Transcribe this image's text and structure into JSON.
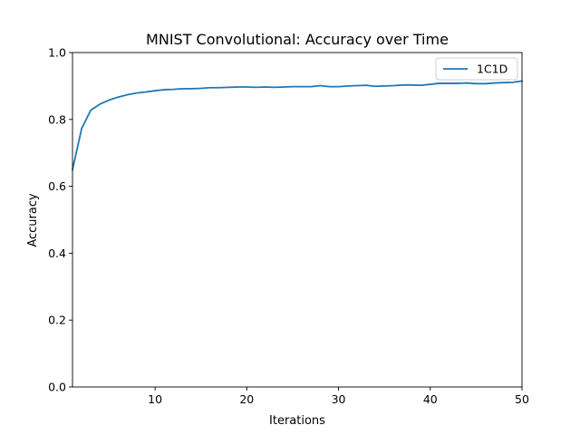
{
  "chart_data": {
    "type": "line",
    "title": "MNIST Convolutional: Accuracy over Time",
    "xlabel": "Iterations",
    "ylabel": "Accuracy",
    "xlim": [
      1,
      50
    ],
    "ylim": [
      0.0,
      1.0
    ],
    "x_ticks": [
      10,
      20,
      30,
      40,
      50
    ],
    "x_tick_labels": [
      "10",
      "20",
      "30",
      "40",
      "50"
    ],
    "y_ticks": [
      0.0,
      0.2,
      0.4,
      0.6,
      0.8,
      1.0
    ],
    "y_tick_labels": [
      "0.0",
      "0.2",
      "0.4",
      "0.6",
      "0.8",
      "1.0"
    ],
    "grid": false,
    "legend_position": "top-right",
    "x": [
      1,
      2,
      3,
      4,
      5,
      6,
      7,
      8,
      9,
      10,
      11,
      12,
      13,
      14,
      15,
      16,
      17,
      18,
      19,
      20,
      21,
      22,
      23,
      24,
      25,
      26,
      27,
      28,
      29,
      30,
      31,
      32,
      33,
      34,
      35,
      36,
      37,
      38,
      39,
      40,
      41,
      42,
      43,
      44,
      45,
      46,
      47,
      48,
      49,
      50
    ],
    "series": [
      {
        "name": "1C1D",
        "color": "#1f77b4",
        "values": [
          0.65,
          0.773,
          0.828,
          0.846,
          0.858,
          0.867,
          0.874,
          0.879,
          0.882,
          0.886,
          0.889,
          0.89,
          0.892,
          0.892,
          0.893,
          0.895,
          0.895,
          0.896,
          0.897,
          0.897,
          0.896,
          0.897,
          0.896,
          0.897,
          0.898,
          0.898,
          0.898,
          0.901,
          0.898,
          0.898,
          0.9,
          0.901,
          0.902,
          0.899,
          0.9,
          0.901,
          0.903,
          0.903,
          0.902,
          0.905,
          0.908,
          0.908,
          0.908,
          0.909,
          0.907,
          0.907,
          0.909,
          0.91,
          0.911,
          0.915
        ]
      }
    ]
  }
}
